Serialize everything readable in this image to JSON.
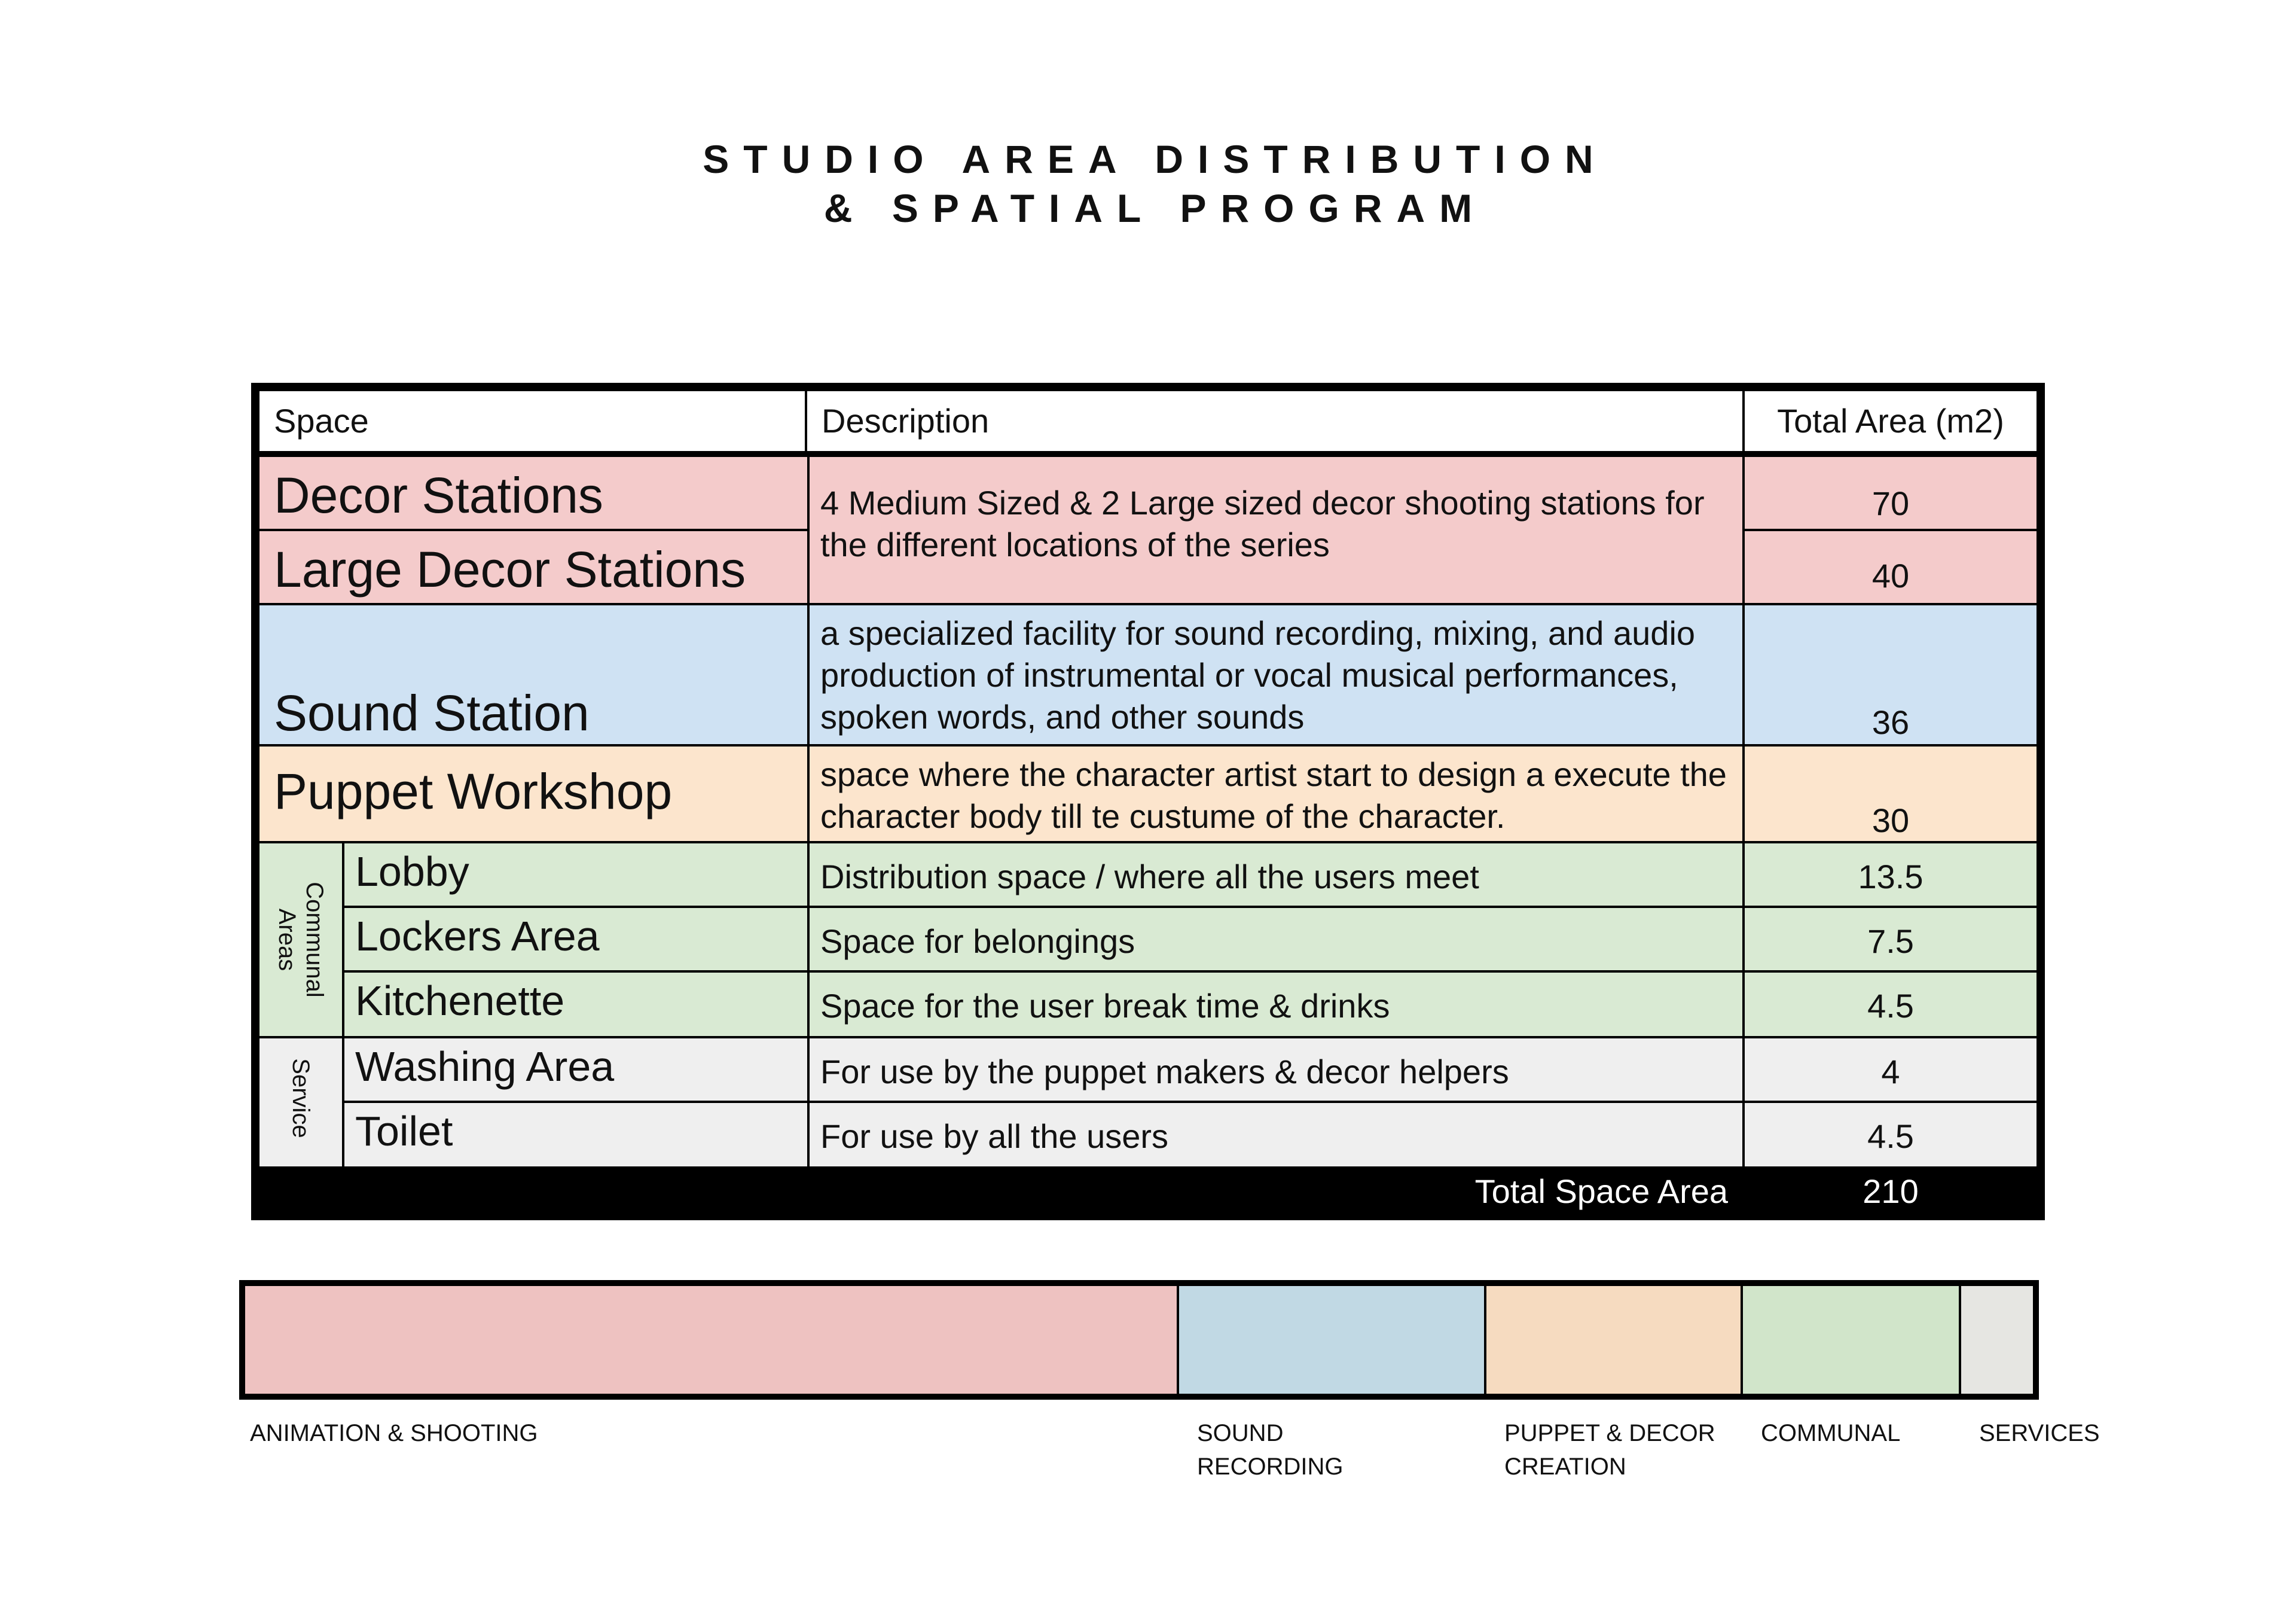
{
  "title": {
    "line1": "STUDIO AREA DISTRIBUTION",
    "line2": "& SPATIAL PROGRAM"
  },
  "table": {
    "headers": {
      "space": "Space",
      "description": "Description",
      "area": "Total Area (m2)"
    },
    "rows": {
      "decor": {
        "space": "Decor Stations",
        "area": "70"
      },
      "large_decor": {
        "space": "Large Decor Stations",
        "area": "40"
      },
      "decor_description": "4 Medium Sized & 2 Large sized decor shooting stations for the different locations of the series",
      "sound": {
        "space": "Sound Station",
        "description": "a specialized facility for sound recording, mixing, and audio production of instrumental or vocal musical performances, spoken words, and other sounds",
        "area": "36"
      },
      "puppet": {
        "space": "Puppet Workshop",
        "description": "space where the character artist start to design a execute the character body till te custume of the character.",
        "area": "30"
      },
      "lobby": {
        "space": "Lobby",
        "description": "Distribution space / where all the users meet",
        "area": "13.5"
      },
      "lockers": {
        "space": "Lockers Area",
        "description": "Space for belongings",
        "area": "7.5"
      },
      "kitchenette": {
        "space": "Kitchenette",
        "description": "Space for the user break time & drinks",
        "area": "4.5"
      },
      "washing": {
        "space": "Washing Area",
        "description": "For use by the puppet makers & decor helpers",
        "area": "4"
      },
      "toilet": {
        "space": "Toilet",
        "description": "For use by all the users",
        "area": "4.5"
      }
    },
    "groups": {
      "communal": "Communal Areas",
      "service": "Service"
    },
    "total": {
      "label": "Total Space Area",
      "value": "210"
    }
  },
  "distribution": {
    "total": 210,
    "segments": [
      {
        "label": "ANIMATION & SHOOTING",
        "value": 110,
        "color": "#eec2c1"
      },
      {
        "label": "SOUND\nRECORDING",
        "value": 36,
        "color": "#c1d9e4"
      },
      {
        "label": "PUPPET & DECOR\nCREATION",
        "value": 30,
        "color": "#f6dbc0"
      },
      {
        "label": "COMMUNAL",
        "value": 25.5,
        "color": "#d1e5ca"
      },
      {
        "label": "SERVICES",
        "value": 8.5,
        "color": "#e6e6e2"
      }
    ]
  },
  "colors": {
    "pink": "#f4cbcb",
    "blue": "#cfe2f3",
    "peach": "#fce5cd",
    "green": "#d9ead3",
    "grey": "#efefef",
    "border": "#000000"
  }
}
